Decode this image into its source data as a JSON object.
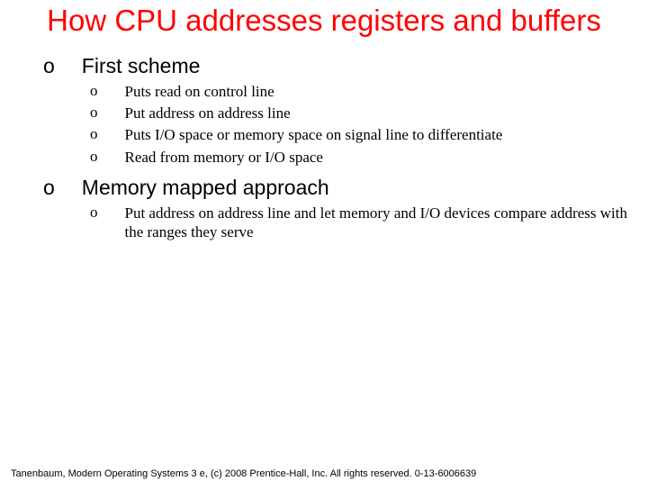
{
  "title": "How CPU addresses registers and buffers",
  "sections": [
    {
      "heading": "First scheme",
      "items": [
        "Puts read on control line",
        "Put address on address line",
        "Puts I/O space or memory space on signal line to differentiate",
        "Read from memory or I/O space"
      ]
    },
    {
      "heading": "Memory mapped approach",
      "items": [
        "Put address on address line and let memory and I/O devices compare address with the ranges they serve"
      ]
    }
  ],
  "footer": "Tanenbaum, Modern Operating Systems 3 e, (c) 2008 Prentice-Hall, Inc. All rights reserved. 0-13-6006639",
  "colors": {
    "title": "#ff0000",
    "text": "#000000",
    "background": "#ffffff"
  },
  "fonts": {
    "title_size": 33,
    "heading_size": 23,
    "item_size": 17,
    "footer_size": 11
  },
  "bullet_glyph": "o"
}
